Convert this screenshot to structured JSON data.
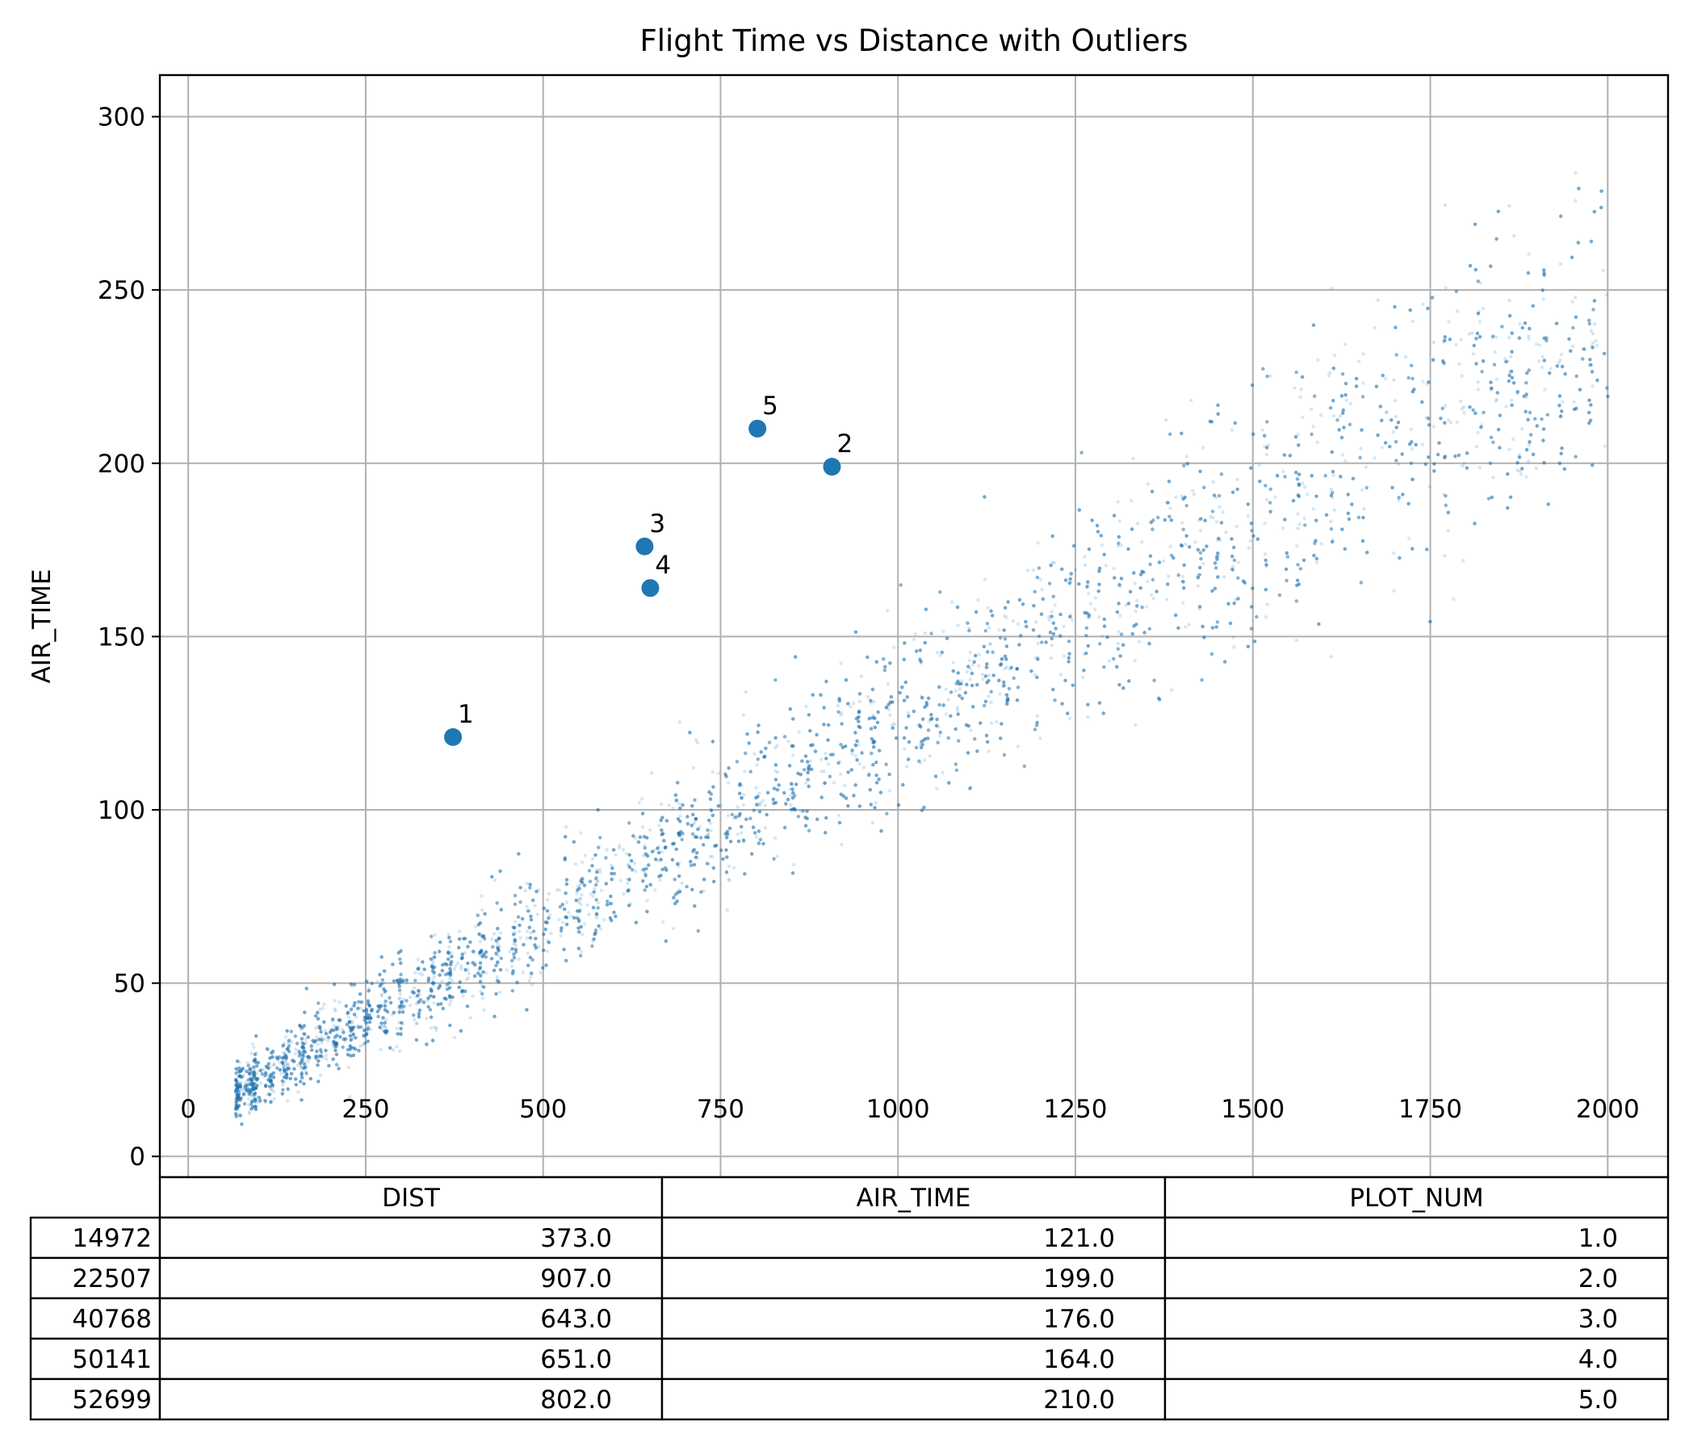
{
  "chart_data": {
    "type": "scatter",
    "title": "Flight Time vs Distance with Outliers",
    "xlabel": "",
    "ylabel": "AIR_TIME",
    "xlim": [
      -40,
      2085
    ],
    "ylim": [
      -6,
      312
    ],
    "x_ticks": [
      0,
      250,
      500,
      750,
      1000,
      1250,
      1500,
      1750,
      2000
    ],
    "x_tick_labels": [
      "0",
      "250",
      "500",
      "750",
      "1000",
      "1250",
      "1500",
      "1750",
      "2000"
    ],
    "y_ticks": [
      0,
      50,
      100,
      150,
      200,
      250,
      300
    ],
    "y_tick_labels": [
      "0",
      "50",
      "100",
      "150",
      "200",
      "250",
      "300"
    ],
    "grid": true,
    "point_color": "#1f77b4",
    "background_cloud": {
      "description_note": "",
      "x_range": [
        67,
        2000
      ],
      "y_range": [
        8,
        298
      ],
      "approx_slope_air_time_per_mile": 0.115,
      "approx_intercept": 10
    },
    "outliers": [
      {
        "label": "1",
        "x": 373.0,
        "y": 121.0
      },
      {
        "label": "2",
        "x": 907.0,
        "y": 199.0
      },
      {
        "label": "3",
        "x": 643.0,
        "y": 176.0
      },
      {
        "label": "4",
        "x": 651.0,
        "y": 164.0
      },
      {
        "label": "5",
        "x": 802.0,
        "y": 210.0
      }
    ]
  },
  "table": {
    "columns": [
      "DIST",
      "AIR_TIME",
      "PLOT_NUM"
    ],
    "rows": [
      {
        "index": "14972",
        "cells": [
          "373.0",
          "121.0",
          "1.0"
        ]
      },
      {
        "index": "22507",
        "cells": [
          "907.0",
          "199.0",
          "2.0"
        ]
      },
      {
        "index": "40768",
        "cells": [
          "643.0",
          "176.0",
          "3.0"
        ]
      },
      {
        "index": "50141",
        "cells": [
          "651.0",
          "164.0",
          "4.0"
        ]
      },
      {
        "index": "52699",
        "cells": [
          "802.0",
          "210.0",
          "5.0"
        ]
      }
    ]
  }
}
